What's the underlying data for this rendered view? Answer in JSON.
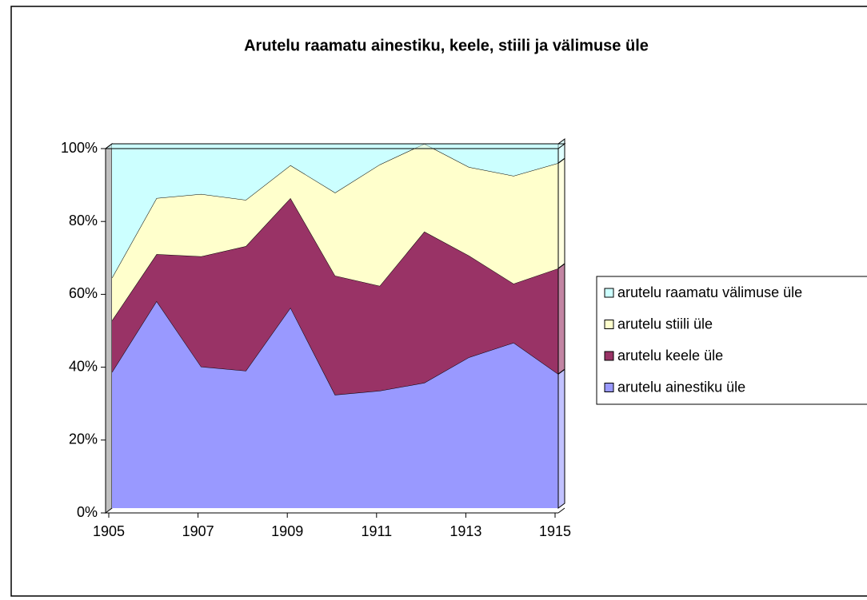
{
  "chart_data": {
    "type": "stacked_area_100",
    "title": "Arutelu raamatu ainestiku, keele, stiili ja välimuse üle",
    "x": [
      1905,
      1906,
      1907,
      1908,
      1909,
      1910,
      1911,
      1912,
      1913,
      1914,
      1915
    ],
    "xlim": [
      1905,
      1915
    ],
    "xticks": [
      1905,
      1907,
      1909,
      1911,
      1913,
      1915
    ],
    "ylim": [
      0,
      100
    ],
    "yticks": [
      {
        "value": 0,
        "label": "0%"
      },
      {
        "value": 20,
        "label": "20%"
      },
      {
        "value": 40,
        "label": "40%"
      },
      {
        "value": 60,
        "label": "60%"
      },
      {
        "value": 80,
        "label": "80%"
      },
      {
        "value": 100,
        "label": "100%"
      }
    ],
    "legend": "right",
    "series": [
      {
        "name": "arutelu ainestiku üle",
        "color": "#9999ff",
        "values": [
          37.3,
          56.8,
          38.8,
          37.7,
          55.0,
          31.1,
          32.2,
          34.4,
          41.4,
          45.4,
          36.8
        ]
      },
      {
        "name": "arutelu keele üle",
        "color": "#993366",
        "values": [
          14.2,
          12.9,
          30.3,
          34.2,
          30.1,
          32.7,
          28.8,
          41.5,
          27.9,
          16.2,
          29.0
        ]
      },
      {
        "name": "arutelu stiili üle",
        "color": "#ffffcc",
        "values": [
          11.7,
          15.4,
          17.1,
          12.7,
          9.0,
          22.8,
          33.3,
          24.1,
          24.3,
          29.6,
          28.9
        ]
      },
      {
        "name": "arutelu raamatu välimuse üle",
        "color": "#ccffff",
        "values": [
          36.8,
          14.9,
          13.8,
          15.4,
          5.9,
          13.4,
          5.7,
          0,
          6.4,
          8.8,
          5.3
        ]
      }
    ]
  }
}
